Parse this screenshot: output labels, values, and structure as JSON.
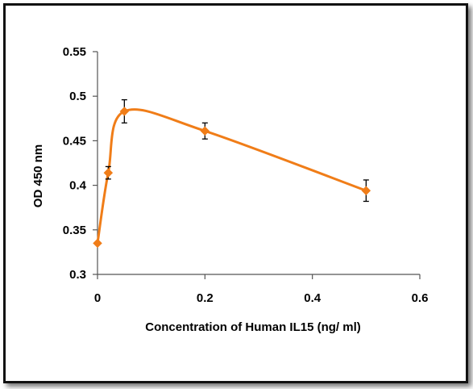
{
  "chart_data": {
    "type": "line",
    "title": "",
    "xlabel": "Concentration of Human IL15 (ng/ ml)",
    "ylabel": "OD 450 nm",
    "xlim": [
      0,
      0.6
    ],
    "ylim": [
      0.3,
      0.55
    ],
    "xticks": [
      0,
      0.2,
      0.4,
      0.6
    ],
    "xtick_labels": [
      "0",
      "0.2",
      "0.4",
      "0.6"
    ],
    "yticks": [
      0.3,
      0.35,
      0.4,
      0.45,
      0.5,
      0.55
    ],
    "ytick_labels": [
      "0.3",
      "0.35",
      "0.4",
      "0.45",
      "0.5",
      "0.55"
    ],
    "grid": false,
    "legend": "none",
    "line_style": "smoothed",
    "color": "#F07D18",
    "series": [
      {
        "x": [
          0,
          0.02,
          0.05,
          0.2,
          0.5
        ],
        "y": [
          0.335,
          0.414,
          0.483,
          0.461,
          0.394
        ],
        "error": [
          0,
          0.007,
          0.013,
          0.009,
          0.012
        ]
      }
    ]
  }
}
